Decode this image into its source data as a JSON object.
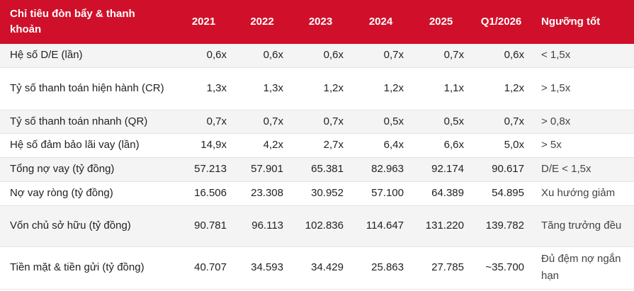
{
  "table": {
    "header": [
      "Chỉ tiêu đòn bẩy & thanh khoản",
      "2021",
      "2022",
      "2023",
      "2024",
      "2025",
      "Q1/2026",
      "Ngưỡng tốt"
    ],
    "rows": [
      [
        "Hệ số D/E (lần)",
        "0,6x",
        "0,6x",
        "0,6x",
        "0,7x",
        "0,7x",
        "0,6x",
        "< 1,5x"
      ],
      [
        "Tỷ số thanh toán hiện hành (CR)",
        "1,3x",
        "1,3x",
        "1,2x",
        "1,2x",
        "1,1x",
        "1,2x",
        "> 1,5x"
      ],
      [
        "Tỷ số thanh toán nhanh (QR)",
        "0,7x",
        "0,7x",
        "0,7x",
        "0,5x",
        "0,5x",
        "0,7x",
        "> 0,8x"
      ],
      [
        "Hệ số đảm bảo lãi vay (lần)",
        "14,9x",
        "4,2x",
        "2,7x",
        "6,4x",
        "6,6x",
        "5,0x",
        "> 5x"
      ],
      [
        "Tổng nợ vay (tỷ đồng)",
        "57.213",
        "57.901",
        "65.381",
        "82.963",
        "92.174",
        "90.617",
        "D/E < 1,5x"
      ],
      [
        "Nợ vay ròng (tỷ đồng)",
        "16.506",
        "23.308",
        "30.952",
        "57.100",
        "64.389",
        "54.895",
        "Xu hướng giảm"
      ],
      [
        "Vốn chủ sở hữu (tỷ đồng)",
        "90.781",
        "96.113",
        "102.836",
        "114.647",
        "131.220",
        "139.782",
        "Tăng trưởng đều"
      ],
      [
        "Tiền mặt & tiền gửi (tỷ đồng)",
        "40.707",
        "34.593",
        "34.429",
        "25.863",
        "27.785",
        "~35.700",
        "Đủ đệm nợ ngắn hạn"
      ]
    ]
  }
}
